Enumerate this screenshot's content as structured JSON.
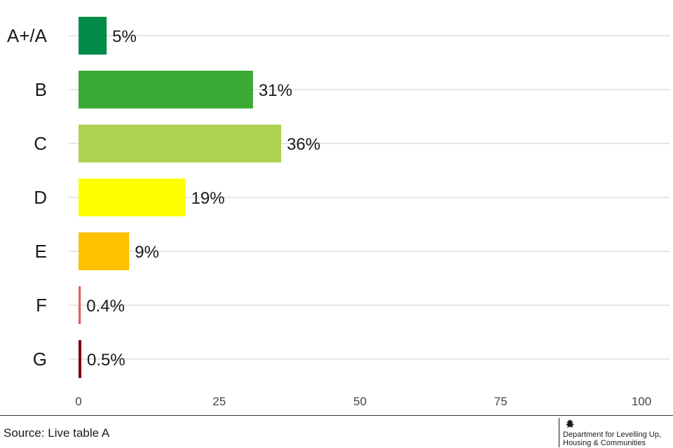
{
  "chart_data": {
    "type": "bar",
    "orientation": "horizontal",
    "categories": [
      "A+/A",
      "B",
      "C",
      "D",
      "E",
      "F",
      "G"
    ],
    "values": [
      5,
      31,
      36,
      19,
      9,
      0.4,
      0.5
    ],
    "value_labels": [
      "5%",
      "31%",
      "36%",
      "19%",
      "9%",
      "0.4%",
      "0.5%"
    ],
    "colors": [
      "#008c48",
      "#3aaa35",
      "#acd153",
      "#ffff00",
      "#ffc000",
      "#e65c5c",
      "#7a0000"
    ],
    "xlim": [
      0,
      100
    ],
    "xticks": [
      0,
      25,
      50,
      75,
      100
    ],
    "xtick_labels": [
      "0",
      "25",
      "50",
      "75",
      "100"
    ],
    "grid": "horizontal",
    "title": "",
    "xlabel": "",
    "ylabel": ""
  },
  "footer": {
    "source": "Source: Live table A",
    "logo_lines": [
      "Department for Levelling Up,",
      "Housing & Communities"
    ],
    "logo_icon": "royal-crest-icon"
  }
}
